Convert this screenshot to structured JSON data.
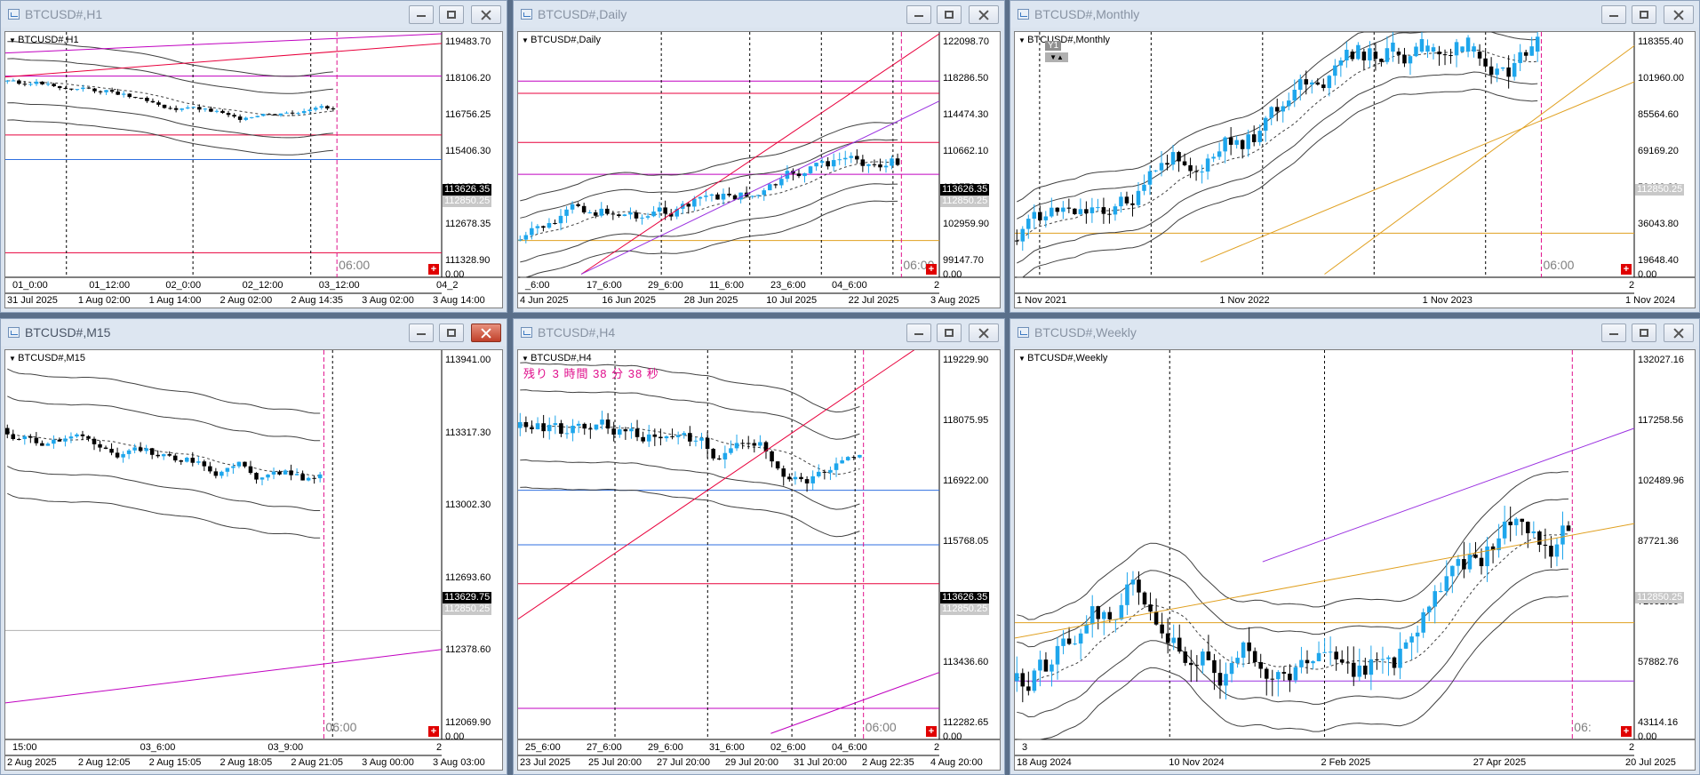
{
  "windows": [
    {
      "id": "h1",
      "title": "BTCUSD#,H1",
      "active": false,
      "chart_label": "BTCUSD#,H1",
      "price_labels": [
        "119483.70",
        "118106.20",
        "116756.25",
        "115406.30",
        "114028.80",
        "112678.35",
        "111328.90",
        "0.00"
      ],
      "price_tags": [
        {
          "text": "113626.35",
          "style": "black"
        },
        {
          "text": "112850.25",
          "style": "gray"
        }
      ],
      "inner_time_labels": [
        "01_0:00",
        "01_12:00",
        "02_0:00",
        "02_12:00",
        "03_12:00",
        "04_2"
      ],
      "time_labels": [
        "31 Jul 2025",
        "1 Aug 02:00",
        "1 Aug 14:00",
        "2 Aug 02:00",
        "2 Aug 14:35",
        "3 Aug 02:00",
        "3 Aug 14:00"
      ],
      "sep_label": "06:00"
    },
    {
      "id": "d1",
      "title": "BTCUSD#,Daily",
      "active": false,
      "chart_label": "BTCUSD#,Daily",
      "price_labels": [
        "122098.70",
        "118286.50",
        "114474.30",
        "110662.10",
        "106772.10",
        "102959.90",
        "99147.70",
        "0.00"
      ],
      "price_tags": [
        {
          "text": "113626.35",
          "style": "black"
        },
        {
          "text": "112850.25",
          "style": "gray"
        }
      ],
      "inner_time_labels": [
        "_6:00",
        "17_6:00",
        "29_6:00",
        "11_6:00",
        "23_6:00",
        "04_6:00",
        "2"
      ],
      "time_labels": [
        "4 Jun 2025",
        "16 Jun 2025",
        "28 Jun 2025",
        "10 Jul 2025",
        "22 Jul 2025",
        "3 Aug 2025"
      ],
      "sep_label": "06:00"
    },
    {
      "id": "mn",
      "title": "BTCUSD#,Monthly",
      "active": false,
      "chart_label": "BTCUSD#,Monthly",
      "y1_label": "Y1",
      "price_labels": [
        "118355.40",
        "101960.00",
        "85564.60",
        "69169.20",
        "52439.80",
        "36043.80",
        "19648.40",
        "0.00"
      ],
      "price_tags": [
        {
          "text": "112850.25",
          "style": "gray"
        }
      ],
      "inner_time_labels": [
        "2"
      ],
      "time_labels": [
        "1 Nov 2021",
        "1 Nov 2022",
        "1 Nov 2023",
        "1 Nov 2024"
      ],
      "sep_label": "06:00"
    },
    {
      "id": "m15",
      "title": "BTCUSD#,M15",
      "active": true,
      "chart_label": "BTCUSD#,M15",
      "price_labels": [
        "113941.00",
        "113317.30",
        "113002.30",
        "112693.60",
        "112378.60",
        "112069.90",
        "0.00"
      ],
      "price_tags": [
        {
          "text": "113629.75",
          "style": "black"
        },
        {
          "text": "112850.25",
          "style": "gray"
        }
      ],
      "inner_time_labels": [
        "15:00",
        "03_6:00",
        "03_9:00",
        "2"
      ],
      "time_labels": [
        "2 Aug 2025",
        "2 Aug 12:05",
        "2 Aug 15:05",
        "2 Aug 18:05",
        "2 Aug 21:05",
        "3 Aug 00:00",
        "3 Aug 03:00"
      ],
      "sep_label": "06:00"
    },
    {
      "id": "h4",
      "title": "BTCUSD#,H4",
      "active": false,
      "chart_label": "BTCUSD#,H4",
      "countdown": "残り 3 時間 38 分 38 秒",
      "price_labels": [
        "119229.90",
        "118075.95",
        "116922.00",
        "115768.05",
        "114590.55",
        "113436.60",
        "112282.65",
        "0.00"
      ],
      "price_tags": [
        {
          "text": "113626.35",
          "style": "black"
        },
        {
          "text": "112850.25",
          "style": "gray"
        }
      ],
      "inner_time_labels": [
        "25_6:00",
        "27_6:00",
        "29_6:00",
        "31_6:00",
        "02_6:00",
        "04_6:00",
        "2"
      ],
      "time_labels": [
        "23 Jul 2025",
        "25 Jul 20:00",
        "27 Jul 20:00",
        "29 Jul 20:00",
        "31 Jul 20:00",
        "2 Aug 22:35",
        "4 Aug 20:00"
      ],
      "sep_label": "06:00"
    },
    {
      "id": "w1",
      "title": "BTCUSD#,Weekly",
      "active": false,
      "chart_label": "BTCUSD#,Weekly",
      "price_labels": [
        "132027.16",
        "117258.56",
        "102489.96",
        "87721.36",
        "72651.36",
        "57882.76",
        "43114.16",
        "0.00"
      ],
      "price_tags": [
        {
          "text": "112850.25",
          "style": "gray"
        }
      ],
      "inner_time_labels": [
        "3",
        "2"
      ],
      "time_labels": [
        "18 Aug 2024",
        "10 Nov 2024",
        "2 Feb 2025",
        "27 Apr 2025",
        "20 Jul 2025"
      ],
      "sep_label": "06:"
    }
  ],
  "colors": {
    "bull": "#1ea6ec",
    "bear": "#000000",
    "band": "#404040",
    "red": "#e8003c",
    "magenta": "#c000c0",
    "blue": "#2f6fe0",
    "orange": "#e0a020",
    "purple": "#9a30e0",
    "pinkv": "#e0108c"
  }
}
